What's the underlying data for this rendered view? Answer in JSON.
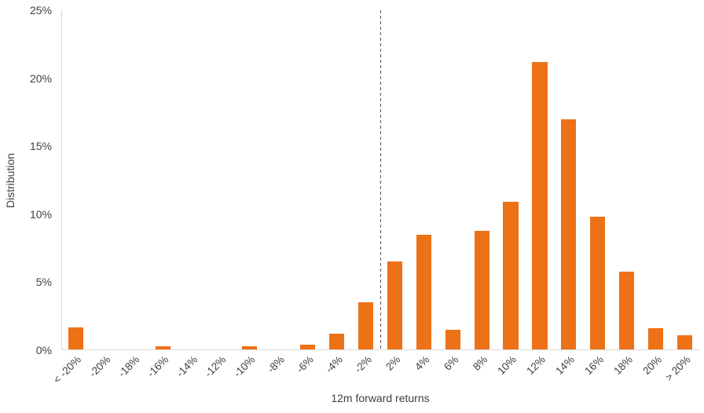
{
  "colors": {
    "bar": "#ED7117",
    "axis_line": "#D9D9D9",
    "text": "#404040",
    "dashed_line": "#595959",
    "background": "#FFFFFF"
  },
  "chart_data": {
    "type": "bar",
    "title": "",
    "xlabel": "12m forward returns",
    "ylabel": "Distribution",
    "categories": [
      "< -20%",
      "-20%",
      "-18%",
      "-16%",
      "-14%",
      "-12%",
      "-10%",
      "-8%",
      "-6%",
      "-4%",
      "-2%",
      "2%",
      "4%",
      "6%",
      "8%",
      "10%",
      "12%",
      "14%",
      "16%",
      "18%",
      "20%",
      "> 20%"
    ],
    "values": [
      1.7,
      0,
      0,
      0.3,
      0,
      0,
      0.3,
      0,
      0.4,
      1.2,
      3.5,
      6.5,
      8.5,
      1.5,
      8.8,
      10.9,
      21.2,
      17.0,
      9.8,
      5.8,
      1.6,
      1.1
    ],
    "ylim": [
      0,
      25
    ],
    "y_ticks": [
      {
        "value": 0,
        "label": "0%"
      },
      {
        "value": 5,
        "label": "5%"
      },
      {
        "value": 10,
        "label": "10%"
      },
      {
        "value": 15,
        "label": "15%"
      },
      {
        "value": 20,
        "label": "20%"
      },
      {
        "value": 25,
        "label": "25%"
      }
    ],
    "grid": false,
    "legend": "none",
    "reference_line": {
      "between_categories": [
        "-2%",
        "2%"
      ],
      "style": "dashed",
      "color": "#595959"
    }
  }
}
